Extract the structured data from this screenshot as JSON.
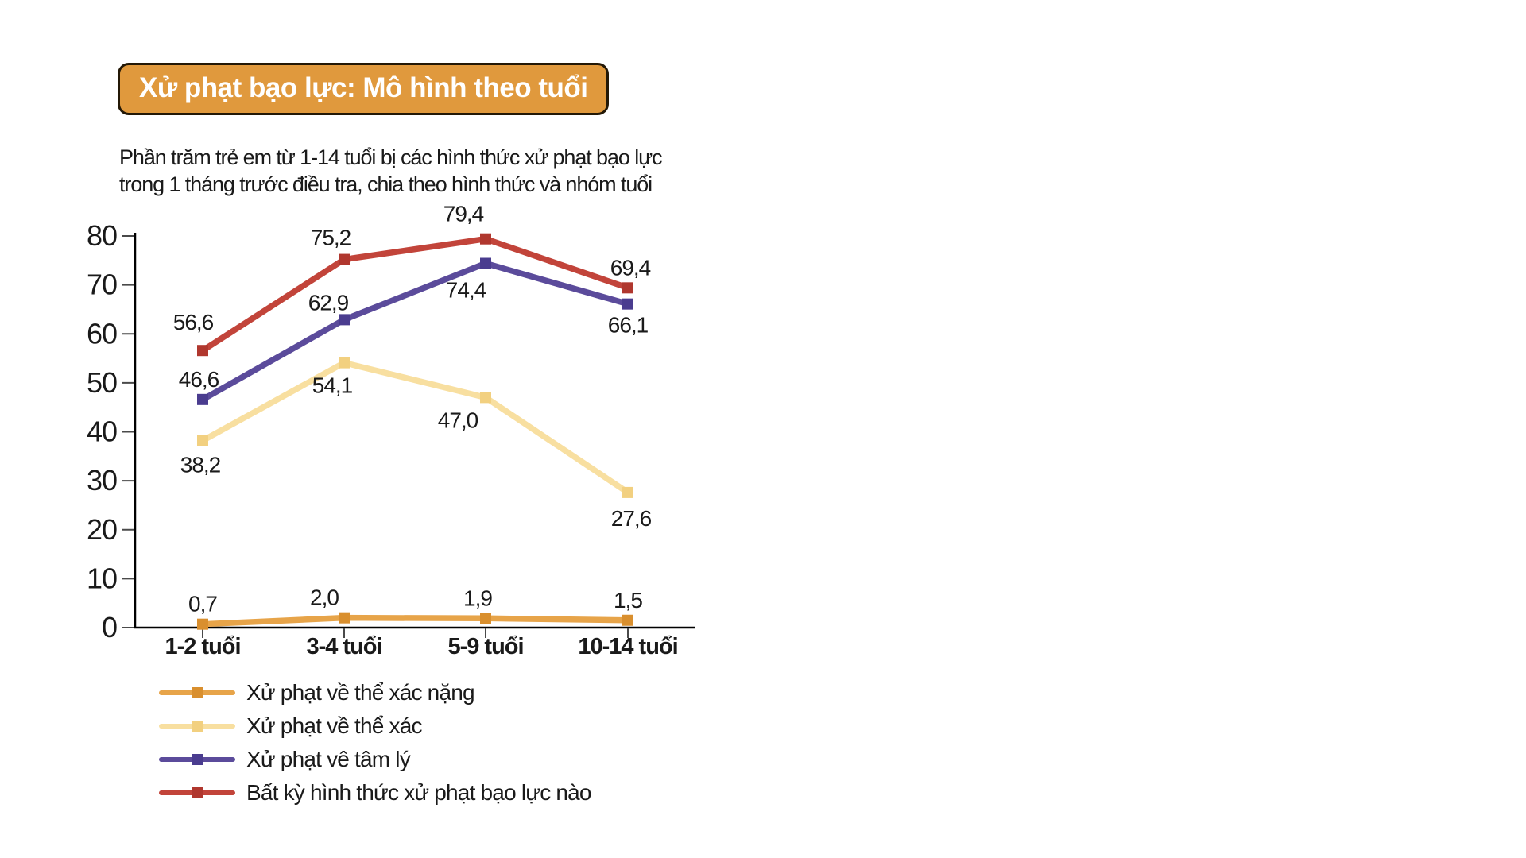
{
  "title": "Xử phạt bạo lực: Mô hình theo tuổi",
  "subtitle": "Phần trăm trẻ em từ 1-14 tuổi bị các hình thức xử phạt bạo lực\ntrong 1 tháng trước điều tra, chia theo hình thức và nhóm tuổi",
  "colors": {
    "background": "#ffffff",
    "title_box_bg": "#e0993d",
    "title_box_border": "#231806",
    "title_text": "#ffffff",
    "axis": "#000000",
    "tick": "#4a4a4a",
    "text": "#1a1a1a"
  },
  "chart_data": {
    "type": "line",
    "categories": [
      "1-2 tuổi",
      "3-4 tuổi",
      "5-9 tuổi",
      "10-14 tuổi"
    ],
    "xlabel": "",
    "ylabel": "",
    "ylim": [
      0,
      80
    ],
    "yticks": [
      0,
      10,
      20,
      30,
      40,
      50,
      60,
      70,
      80
    ],
    "grid": false,
    "legend_position": "bottom-left",
    "decimal_separator": ",",
    "series": [
      {
        "name": "Xử phạt về thể xác nặng",
        "color": "#e7a449",
        "marker_color": "#d98f2e",
        "values": [
          0.7,
          2.0,
          1.9,
          1.5
        ],
        "labels": [
          "0,7",
          "2,0",
          "1,9",
          "1,5"
        ],
        "label_offsets": [
          [
            0,
            -16
          ],
          [
            -25,
            -16
          ],
          [
            -10,
            -16
          ],
          [
            0,
            -16
          ]
        ]
      },
      {
        "name": "Xử phạt về thể xác",
        "color": "#f8dfa0",
        "marker_color": "#f2d080",
        "values": [
          38.2,
          54.1,
          47.0,
          27.6
        ],
        "labels": [
          "38,2",
          "54,1",
          "47,0",
          "27,6"
        ],
        "label_offsets": [
          [
            -3,
            40
          ],
          [
            -15,
            38
          ],
          [
            -35,
            38
          ],
          [
            4,
            42
          ]
        ]
      },
      {
        "name": "Xử phạt vê tâm lý",
        "color": "#5b4b9b",
        "marker_color": "#4a3c8f",
        "values": [
          46.6,
          62.9,
          74.4,
          66.1
        ],
        "labels": [
          "46,6",
          "62,9",
          "74,4",
          "66,1"
        ],
        "label_offsets": [
          [
            -5,
            -16
          ],
          [
            -20,
            -12
          ],
          [
            -25,
            43
          ],
          [
            0,
            36
          ]
        ]
      },
      {
        "name": "Bất kỳ hình thức xử phạt bạo lực nào",
        "color": "#c2443a",
        "marker_color": "#b0372e",
        "values": [
          56.6,
          75.2,
          79.4,
          69.4
        ],
        "labels": [
          "56,6",
          "75,2",
          "79,4",
          "69,4"
        ],
        "label_offsets": [
          [
            -12,
            -26
          ],
          [
            -17,
            -18
          ],
          [
            -28,
            -22
          ],
          [
            3,
            -16
          ]
        ]
      }
    ]
  }
}
